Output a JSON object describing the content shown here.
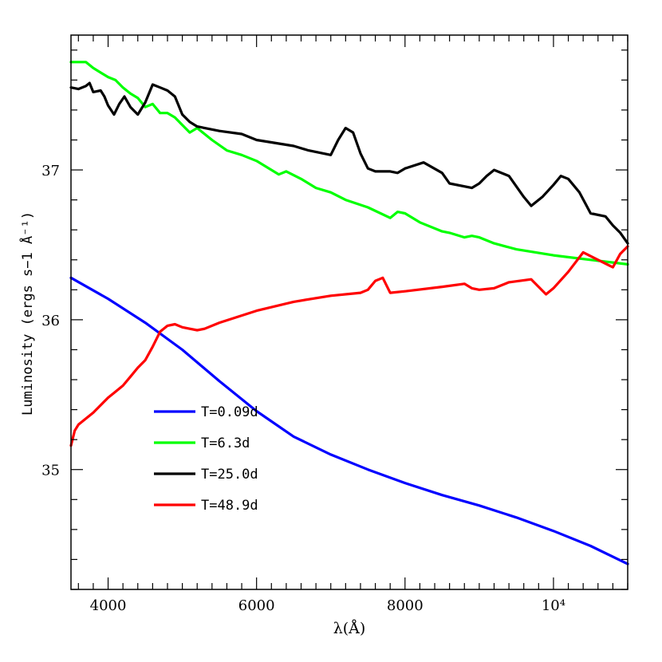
{
  "chart_data": {
    "type": "line",
    "title": "",
    "xlabel": "λ(Å)",
    "ylabel": "Luminosity (ergs s−1 Å⁻¹)",
    "xlim": [
      3500,
      11000
    ],
    "ylim": [
      34.2,
      37.9
    ],
    "x_tick_labels": [
      "4000",
      "6000",
      "8000",
      "10⁴"
    ],
    "x_tick_values": [
      4000,
      6000,
      8000,
      10000
    ],
    "y_tick_labels": [
      "35",
      "36",
      "37"
    ],
    "y_tick_values": [
      35,
      36,
      37
    ],
    "grid": false,
    "legend_position": "lower-left",
    "series": [
      {
        "name": "T=0.09d",
        "color": "#0000ff",
        "points": [
          [
            3500,
            36.28
          ],
          [
            4000,
            36.14
          ],
          [
            4500,
            35.98
          ],
          [
            5000,
            35.8
          ],
          [
            5500,
            35.59
          ],
          [
            6000,
            35.39
          ],
          [
            6500,
            35.22
          ],
          [
            7000,
            35.1
          ],
          [
            7500,
            35.0
          ],
          [
            8000,
            34.91
          ],
          [
            8500,
            34.83
          ],
          [
            9000,
            34.76
          ],
          [
            9500,
            34.68
          ],
          [
            10000,
            34.59
          ],
          [
            10500,
            34.49
          ],
          [
            11000,
            34.37
          ]
        ]
      },
      {
        "name": "T=6.3d",
        "color": "#00ff00",
        "points": [
          [
            3500,
            37.72
          ],
          [
            3600,
            37.72
          ],
          [
            3700,
            37.72
          ],
          [
            3800,
            37.68
          ],
          [
            3900,
            37.65
          ],
          [
            4000,
            37.62
          ],
          [
            4100,
            37.6
          ],
          [
            4200,
            37.55
          ],
          [
            4300,
            37.51
          ],
          [
            4400,
            37.48
          ],
          [
            4500,
            37.42
          ],
          [
            4600,
            37.44
          ],
          [
            4700,
            37.38
          ],
          [
            4800,
            37.38
          ],
          [
            4900,
            37.35
          ],
          [
            5000,
            37.3
          ],
          [
            5100,
            37.25
          ],
          [
            5200,
            37.28
          ],
          [
            5300,
            37.24
          ],
          [
            5400,
            37.2
          ],
          [
            5600,
            37.13
          ],
          [
            5800,
            37.1
          ],
          [
            6000,
            37.06
          ],
          [
            6300,
            36.97
          ],
          [
            6400,
            36.99
          ],
          [
            6600,
            36.94
          ],
          [
            6800,
            36.88
          ],
          [
            7000,
            36.85
          ],
          [
            7200,
            36.8
          ],
          [
            7500,
            36.75
          ],
          [
            7800,
            36.68
          ],
          [
            7900,
            36.72
          ],
          [
            8000,
            36.71
          ],
          [
            8200,
            36.65
          ],
          [
            8500,
            36.59
          ],
          [
            8600,
            36.58
          ],
          [
            8800,
            36.55
          ],
          [
            8900,
            36.56
          ],
          [
            9000,
            36.55
          ],
          [
            9200,
            36.51
          ],
          [
            9500,
            36.47
          ],
          [
            10000,
            36.43
          ],
          [
            10500,
            36.4
          ],
          [
            11000,
            36.37
          ]
        ]
      },
      {
        "name": "T=25.0d",
        "color": "#000000",
        "points": [
          [
            3500,
            37.55
          ],
          [
            3600,
            37.54
          ],
          [
            3700,
            37.56
          ],
          [
            3750,
            37.58
          ],
          [
            3800,
            37.52
          ],
          [
            3900,
            37.53
          ],
          [
            3950,
            37.49
          ],
          [
            4000,
            37.43
          ],
          [
            4080,
            37.37
          ],
          [
            4150,
            37.44
          ],
          [
            4220,
            37.49
          ],
          [
            4300,
            37.42
          ],
          [
            4400,
            37.37
          ],
          [
            4500,
            37.45
          ],
          [
            4600,
            37.57
          ],
          [
            4700,
            37.55
          ],
          [
            4800,
            37.53
          ],
          [
            4900,
            37.49
          ],
          [
            5000,
            37.37
          ],
          [
            5100,
            37.32
          ],
          [
            5200,
            37.29
          ],
          [
            5500,
            37.26
          ],
          [
            5800,
            37.24
          ],
          [
            6000,
            37.2
          ],
          [
            6500,
            37.16
          ],
          [
            6700,
            37.13
          ],
          [
            7000,
            37.1
          ],
          [
            7100,
            37.2
          ],
          [
            7200,
            37.28
          ],
          [
            7300,
            37.25
          ],
          [
            7400,
            37.11
          ],
          [
            7500,
            37.01
          ],
          [
            7600,
            36.99
          ],
          [
            7700,
            36.99
          ],
          [
            7800,
            36.99
          ],
          [
            7900,
            36.98
          ],
          [
            8000,
            37.01
          ],
          [
            8250,
            37.05
          ],
          [
            8500,
            36.98
          ],
          [
            8600,
            36.91
          ],
          [
            8900,
            36.88
          ],
          [
            9000,
            36.91
          ],
          [
            9100,
            36.96
          ],
          [
            9200,
            37.0
          ],
          [
            9400,
            36.96
          ],
          [
            9600,
            36.82
          ],
          [
            9700,
            36.76
          ],
          [
            9850,
            36.82
          ],
          [
            10000,
            36.9
          ],
          [
            10100,
            36.96
          ],
          [
            10200,
            36.94
          ],
          [
            10350,
            36.85
          ],
          [
            10500,
            36.71
          ],
          [
            10700,
            36.69
          ],
          [
            10800,
            36.63
          ],
          [
            10900,
            36.58
          ],
          [
            11000,
            36.51
          ]
        ]
      },
      {
        "name": "T=48.9d",
        "color": "#ff0000",
        "points": [
          [
            3500,
            35.16
          ],
          [
            3550,
            35.26
          ],
          [
            3600,
            35.3
          ],
          [
            3700,
            35.34
          ],
          [
            3800,
            35.38
          ],
          [
            3900,
            35.43
          ],
          [
            4000,
            35.48
          ],
          [
            4100,
            35.52
          ],
          [
            4200,
            35.56
          ],
          [
            4300,
            35.62
          ],
          [
            4400,
            35.68
          ],
          [
            4500,
            35.73
          ],
          [
            4600,
            35.82
          ],
          [
            4700,
            35.92
          ],
          [
            4800,
            35.96
          ],
          [
            4900,
            35.97
          ],
          [
            5000,
            35.95
          ],
          [
            5100,
            35.94
          ],
          [
            5200,
            35.93
          ],
          [
            5300,
            35.94
          ],
          [
            5500,
            35.98
          ],
          [
            6000,
            36.06
          ],
          [
            6500,
            36.12
          ],
          [
            7000,
            36.16
          ],
          [
            7400,
            36.18
          ],
          [
            7500,
            36.2
          ],
          [
            7600,
            36.26
          ],
          [
            7700,
            36.28
          ],
          [
            7800,
            36.18
          ],
          [
            8000,
            36.19
          ],
          [
            8500,
            36.22
          ],
          [
            8800,
            36.24
          ],
          [
            8900,
            36.21
          ],
          [
            9000,
            36.2
          ],
          [
            9200,
            36.21
          ],
          [
            9400,
            36.25
          ],
          [
            9700,
            36.27
          ],
          [
            9800,
            36.22
          ],
          [
            9900,
            36.17
          ],
          [
            10000,
            36.21
          ],
          [
            10200,
            36.32
          ],
          [
            10400,
            36.45
          ],
          [
            10600,
            36.4
          ],
          [
            10800,
            36.35
          ],
          [
            10900,
            36.44
          ],
          [
            11000,
            36.49
          ]
        ]
      }
    ]
  }
}
